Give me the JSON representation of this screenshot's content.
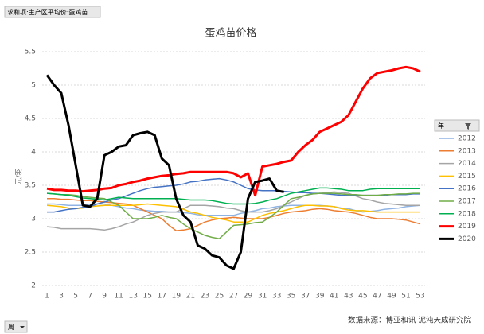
{
  "chart_data": {
    "type": "line",
    "title": "蛋鸡苗价格",
    "y_label": "元/羽",
    "field_button": "求和项:主产区平均价:蛋鸡苗",
    "axis_field_button": "周",
    "legend_title": "年",
    "source": "数据来源：博亚和讯 泥沌天成研究院",
    "legend": "right",
    "grid": true,
    "categories": [
      1,
      null,
      3,
      null,
      5,
      null,
      7,
      null,
      9,
      null,
      11,
      null,
      13,
      null,
      15,
      null,
      17,
      null,
      19,
      null,
      21,
      null,
      23,
      null,
      25,
      null,
      27,
      null,
      29,
      null,
      31,
      null,
      33,
      null,
      35,
      null,
      37,
      null,
      39,
      null,
      41,
      null,
      43,
      null,
      45,
      null,
      47,
      null,
      49,
      null,
      51,
      null,
      53
    ],
    "ylim": [
      2,
      5.5
    ],
    "yticks": [
      2,
      2.5,
      3,
      3.5,
      4,
      4.5,
      5,
      5.5
    ],
    "series": [
      {
        "name": "2012",
        "color": "#8fb4e3",
        "values": [
          3.22,
          3.22,
          3.21,
          3.2,
          3.2,
          3.2,
          3.21,
          3.22,
          3.22,
          3.2,
          3.18,
          3.16,
          3.15,
          3.13,
          3.12,
          3.11,
          3.11,
          3.1,
          3.1,
          3.09,
          3.08,
          3.06,
          3.05,
          3.05,
          3.05,
          3.05,
          3.05,
          3.08,
          3.1,
          3.12,
          3.15,
          3.16,
          3.18,
          3.19,
          3.2,
          3.2,
          3.2,
          3.2,
          3.2,
          3.19,
          3.18,
          3.16,
          3.15,
          3.12,
          3.1,
          3.11,
          3.12,
          3.14,
          3.15,
          3.16,
          3.18,
          3.19,
          3.2
        ]
      },
      {
        "name": "2013",
        "color": "#ed7d31",
        "values": [
          3.3,
          3.3,
          3.29,
          3.29,
          3.28,
          3.27,
          3.27,
          3.26,
          3.25,
          3.24,
          3.23,
          3.22,
          3.2,
          3.15,
          3.1,
          3.05,
          3.0,
          2.9,
          2.82,
          2.83,
          2.85,
          2.9,
          2.95,
          2.98,
          3.0,
          3.01,
          3.02,
          3.01,
          3.0,
          3.0,
          3.0,
          3.02,
          3.05,
          3.08,
          3.1,
          3.11,
          3.12,
          3.14,
          3.15,
          3.14,
          3.12,
          3.11,
          3.1,
          3.08,
          3.05,
          3.02,
          3.0,
          3.0,
          3.0,
          2.99,
          2.98,
          2.95,
          2.92
        ]
      },
      {
        "name": "2014",
        "color": "#a5a5a5",
        "values": [
          2.88,
          2.87,
          2.85,
          2.85,
          2.85,
          2.85,
          2.85,
          2.84,
          2.83,
          2.85,
          2.88,
          2.92,
          2.95,
          3.0,
          3.05,
          3.08,
          3.1,
          3.1,
          3.1,
          3.15,
          3.2,
          3.2,
          3.2,
          3.19,
          3.18,
          3.16,
          3.15,
          3.12,
          3.1,
          3.1,
          3.1,
          3.12,
          3.15,
          3.2,
          3.25,
          3.3,
          3.35,
          3.37,
          3.38,
          3.39,
          3.4,
          3.39,
          3.38,
          3.34,
          3.3,
          3.28,
          3.25,
          3.23,
          3.22,
          3.21,
          3.2,
          3.2,
          3.2
        ]
      },
      {
        "name": "2015",
        "color": "#ffc000",
        "values": [
          3.2,
          3.19,
          3.18,
          3.16,
          3.15,
          3.16,
          3.18,
          3.19,
          3.2,
          3.2,
          3.2,
          3.2,
          3.2,
          3.21,
          3.22,
          3.21,
          3.2,
          3.19,
          3.18,
          3.14,
          3.1,
          3.08,
          3.05,
          3.02,
          3.0,
          2.98,
          2.95,
          2.95,
          2.95,
          3.0,
          3.05,
          3.08,
          3.1,
          3.12,
          3.15,
          3.18,
          3.2,
          3.2,
          3.19,
          3.19,
          3.18,
          3.15,
          3.13,
          3.12,
          3.12,
          3.11,
          3.1,
          3.1,
          3.1,
          3.1,
          3.1,
          3.1,
          3.1
        ]
      },
      {
        "name": "2016",
        "color": "#4472c4",
        "values": [
          3.1,
          3.1,
          3.12,
          3.14,
          3.15,
          3.17,
          3.18,
          3.22,
          3.25,
          3.28,
          3.3,
          3.34,
          3.38,
          3.42,
          3.45,
          3.47,
          3.48,
          3.49,
          3.5,
          3.52,
          3.55,
          3.56,
          3.58,
          3.59,
          3.6,
          3.58,
          3.55,
          3.5,
          3.45,
          3.43,
          3.42,
          3.42,
          3.42,
          3.41,
          3.4,
          3.39,
          3.39,
          3.38,
          3.38,
          3.37,
          3.36,
          3.35,
          3.35,
          3.35,
          3.35,
          3.35,
          3.35,
          3.35,
          3.36,
          3.36,
          3.36,
          3.37,
          3.37
        ]
      },
      {
        "name": "2017",
        "color": "#70ad47",
        "values": [
          3.38,
          3.37,
          3.36,
          3.36,
          3.35,
          3.33,
          3.32,
          3.31,
          3.3,
          3.25,
          3.2,
          3.1,
          3.0,
          3.0,
          3.0,
          3.02,
          3.05,
          3.02,
          3.0,
          2.92,
          2.85,
          2.8,
          2.75,
          2.72,
          2.7,
          2.8,
          2.9,
          2.91,
          2.92,
          2.94,
          2.95,
          3.02,
          3.1,
          3.2,
          3.3,
          3.32,
          3.35,
          3.37,
          3.38,
          3.38,
          3.38,
          3.37,
          3.36,
          3.36,
          3.35,
          3.35,
          3.35,
          3.36,
          3.36,
          3.37,
          3.37,
          3.38,
          3.38
        ]
      },
      {
        "name": "2018",
        "color": "#00b050",
        "values": [
          3.38,
          3.37,
          3.36,
          3.35,
          3.33,
          3.31,
          3.3,
          3.29,
          3.28,
          3.3,
          3.32,
          3.31,
          3.3,
          3.3,
          3.3,
          3.3,
          3.3,
          3.3,
          3.3,
          3.29,
          3.28,
          3.28,
          3.28,
          3.27,
          3.25,
          3.23,
          3.22,
          3.22,
          3.22,
          3.23,
          3.25,
          3.28,
          3.3,
          3.34,
          3.38,
          3.4,
          3.42,
          3.44,
          3.46,
          3.46,
          3.45,
          3.44,
          3.42,
          3.42,
          3.42,
          3.44,
          3.45,
          3.45,
          3.45,
          3.45,
          3.45,
          3.45,
          3.45
        ]
      },
      {
        "name": "2019",
        "color": "#ff0000",
        "values": [
          3.45,
          3.43,
          3.43,
          3.42,
          3.42,
          3.41,
          3.42,
          3.43,
          3.45,
          3.46,
          3.5,
          3.52,
          3.55,
          3.57,
          3.6,
          3.62,
          3.64,
          3.65,
          3.67,
          3.68,
          3.7,
          3.7,
          3.7,
          3.7,
          3.7,
          3.7,
          3.68,
          3.62,
          3.68,
          3.35,
          3.78,
          3.8,
          3.82,
          3.85,
          3.87,
          4.0,
          4.1,
          4.18,
          4.3,
          4.35,
          4.4,
          4.45,
          4.55,
          4.75,
          4.95,
          5.1,
          5.18,
          5.2,
          5.22,
          5.25,
          5.27,
          5.25,
          5.2
        ]
      },
      {
        "name": "2020",
        "color": "#000000",
        "values": [
          5.15,
          5.0,
          4.88,
          4.4,
          3.8,
          3.2,
          3.18,
          3.3,
          3.95,
          4.0,
          4.08,
          4.1,
          4.25,
          4.28,
          4.3,
          4.25,
          3.9,
          3.8,
          3.3,
          3.05,
          2.95,
          2.6,
          2.55,
          2.45,
          2.42,
          2.3,
          2.25,
          2.5,
          3.3,
          3.55,
          3.57,
          3.6,
          3.42,
          3.4,
          null,
          null,
          null,
          null,
          null,
          null,
          null,
          null,
          null,
          null,
          null,
          null,
          null,
          null,
          null,
          null,
          null,
          null,
          null
        ]
      }
    ]
  }
}
